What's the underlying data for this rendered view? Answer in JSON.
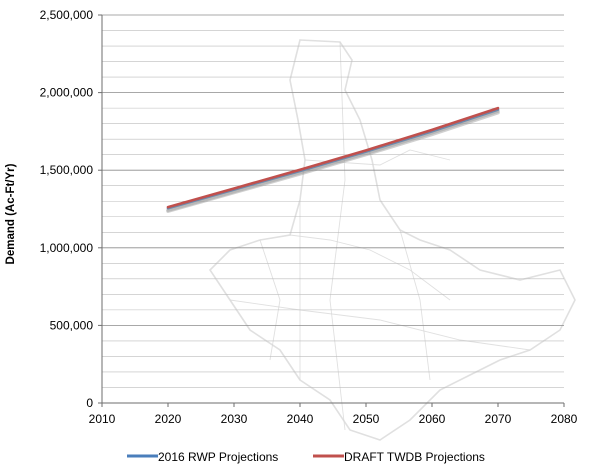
{
  "chart_data": {
    "type": "line",
    "ylabel": "Demand (Ac-Ft/Yr)",
    "xlabel": "",
    "xlim": [
      2010,
      2080
    ],
    "ylim": [
      0,
      2500000
    ],
    "x_ticks": [
      "2010",
      "2020",
      "2030",
      "2040",
      "2050",
      "2060",
      "2070",
      "2080"
    ],
    "y_ticks": [
      "0",
      "500,000",
      "1,000,000",
      "1,500,000",
      "2,000,000",
      "2,500,000"
    ],
    "grid": "horizontal",
    "legend_position": "bottom",
    "series": [
      {
        "name": "2016 RWP Projections",
        "color": "#4a7ebb",
        "x": [
          2020,
          2030,
          2040,
          2050,
          2060,
          2070
        ],
        "y": [
          1255000,
          1375000,
          1495000,
          1620000,
          1750000,
          1890000
        ]
      },
      {
        "name": "DRAFT TWDB Projections",
        "color": "#c0504d",
        "x": [
          2020,
          2030,
          2040,
          2050,
          2060,
          2070
        ],
        "y": [
          1262000,
          1382000,
          1503000,
          1628000,
          1760000,
          1900000
        ]
      }
    ]
  }
}
